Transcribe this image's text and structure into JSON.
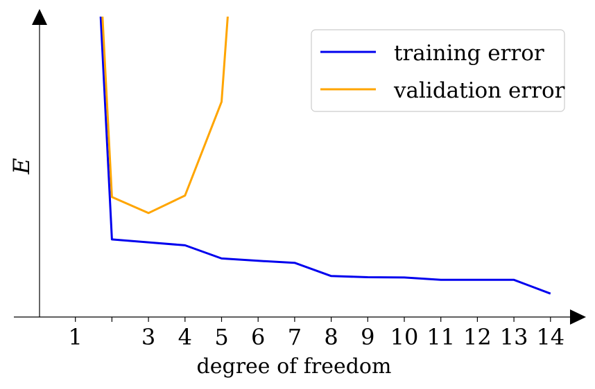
{
  "chart_data": {
    "type": "line",
    "title": "",
    "xlabel": "degree of freedom",
    "ylabel": "E",
    "xlim": [
      0,
      14.5
    ],
    "ylim": [
      0,
      1.0
    ],
    "x_ticks": [
      1,
      2,
      3,
      4,
      5,
      6,
      7,
      8,
      9,
      10,
      11,
      12,
      13,
      14
    ],
    "x_tick_labels": [
      "1",
      "",
      "3",
      "4",
      "5",
      "6",
      "7",
      "8",
      "9",
      "10",
      "11",
      "12",
      "13",
      "14"
    ],
    "grid": false,
    "legend_position": "top-right",
    "series": [
      {
        "name": "training error",
        "color": "#0000ee",
        "x": [
          1.5,
          2,
          3,
          4,
          5,
          6,
          7,
          8,
          9,
          10,
          11,
          12,
          13,
          14
        ],
        "y": [
          1.5,
          0.265,
          0.255,
          0.245,
          0.2,
          0.192,
          0.185,
          0.14,
          0.136,
          0.135,
          0.127,
          0.127,
          0.127,
          0.08
        ]
      },
      {
        "name": "validation error",
        "color": "#ffa500",
        "x": [
          1.5,
          2,
          3,
          4,
          5,
          5.5
        ],
        "y": [
          1.6,
          0.41,
          0.355,
          0.415,
          0.735,
          1.6
        ]
      }
    ]
  }
}
